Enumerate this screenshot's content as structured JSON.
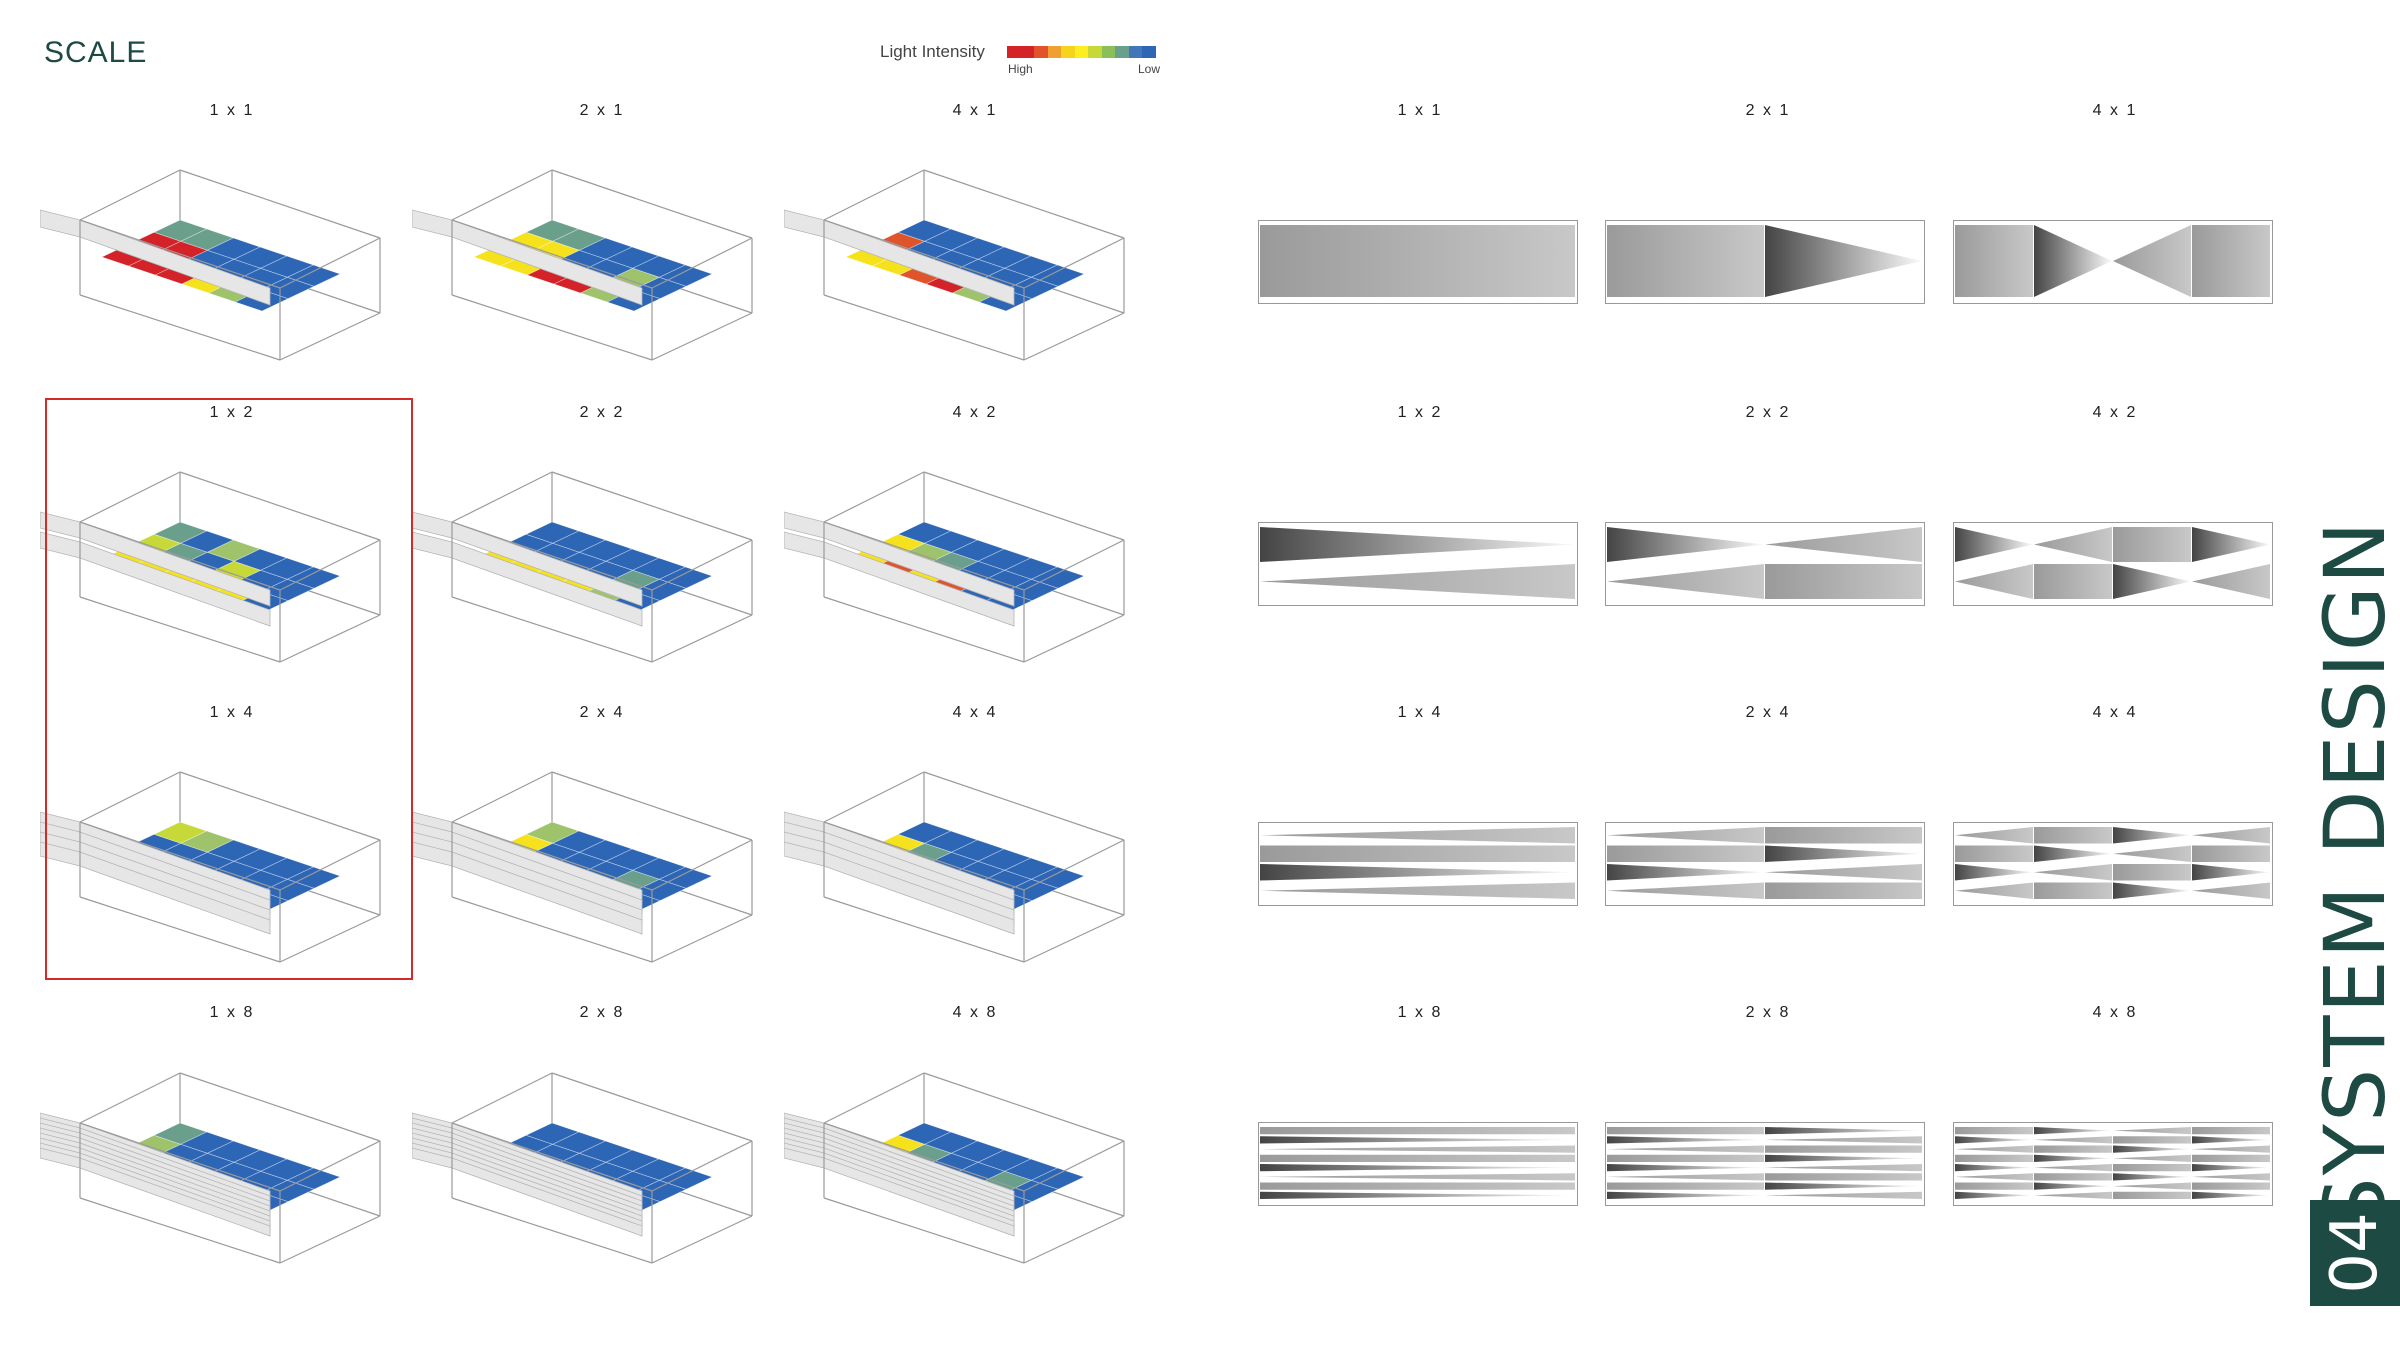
{
  "title": "SCALE",
  "legend": {
    "label": "Light Intensity",
    "high": "High",
    "low": "Low",
    "colors": [
      "#d32228",
      "#d32228",
      "#e2532c",
      "#f0a030",
      "#f6d41c",
      "#fcee21",
      "#c7d938",
      "#8bbf5a",
      "#6a9f8c",
      "#3f77b8",
      "#2e66b6"
    ]
  },
  "colors": {
    "blue": "#2e66b6",
    "teal": "#6a9f8c",
    "green": "#9fc36a",
    "lime": "#c7d938",
    "yellow": "#f5e21c",
    "orange": "#e0542c",
    "red": "#d32228",
    "accent": "#1d4a42"
  },
  "grid": {
    "rows": [
      [
        "1 x 1",
        "2 x 1",
        "4 x 1"
      ],
      [
        "1 x 2",
        "2 x 2",
        "4 x 2"
      ],
      [
        "1 x 4",
        "2 x 4",
        "4 x 4"
      ],
      [
        "1 x 8",
        "2 x 8",
        "4 x 8"
      ]
    ]
  },
  "highlighted_cells": [
    "1 x 2",
    "1 x 4"
  ],
  "section": {
    "number": "04",
    "title": "SYSTEM DESIGN"
  }
}
